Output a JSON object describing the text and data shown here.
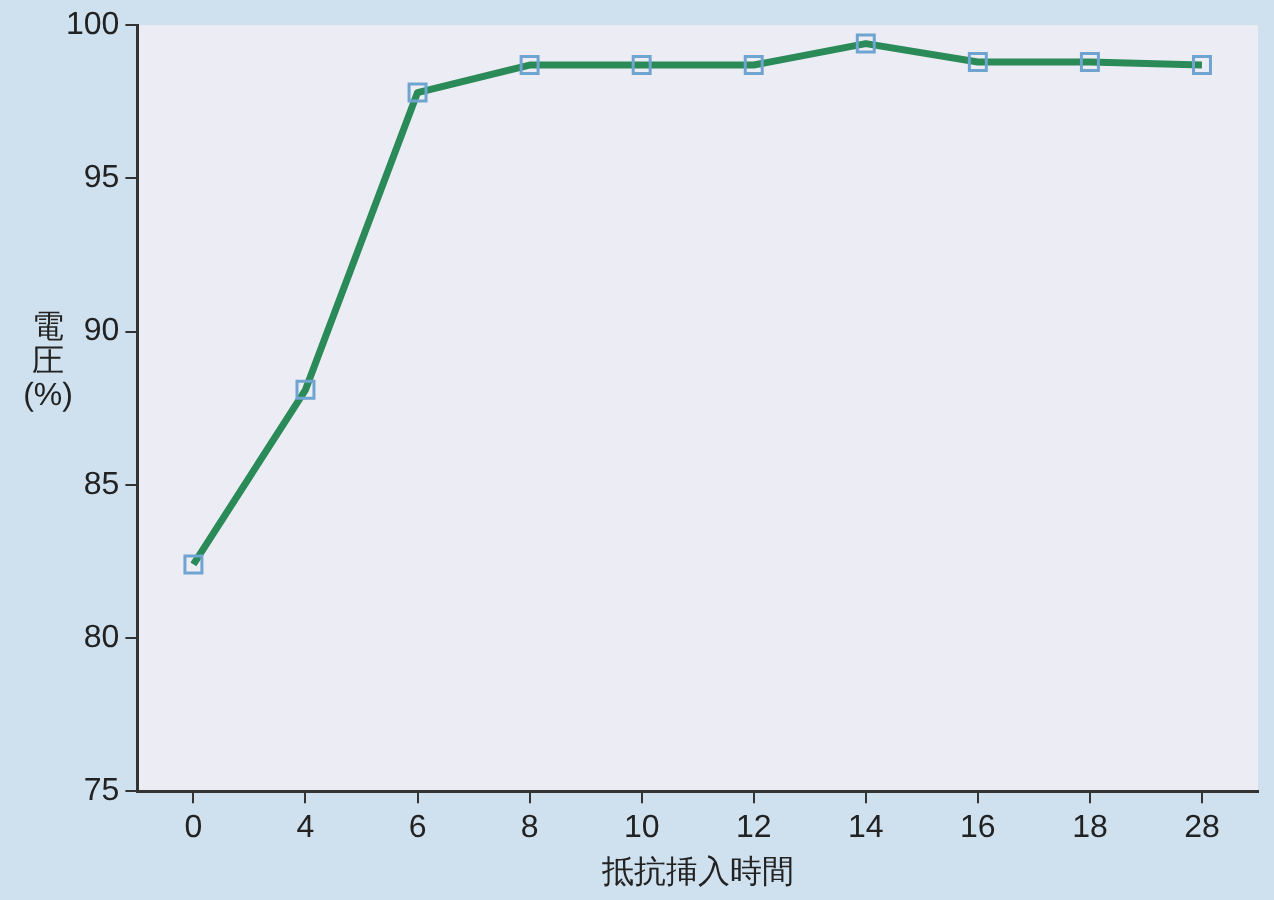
{
  "chart_data": {
    "type": "line",
    "xlabel": "抵抗挿入時間",
    "ylabel": "電圧(%)",
    "categories": [
      "0",
      "4",
      "6",
      "8",
      "10",
      "12",
      "14",
      "16",
      "18",
      "28"
    ],
    "series": [
      {
        "color": "#2a8a58",
        "values": [
          82.4,
          88.1,
          97.8,
          98.7,
          98.7,
          98.7,
          99.4,
          98.8,
          98.8,
          98.7
        ]
      }
    ],
    "ylim": [
      75,
      100
    ],
    "yticks": [
      75,
      80,
      85,
      90,
      95,
      100
    ],
    "grid": false,
    "legend": false,
    "marker": "square",
    "line_style": "solid"
  }
}
